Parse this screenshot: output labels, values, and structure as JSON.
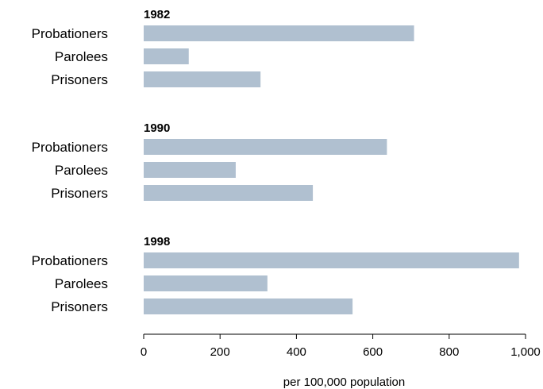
{
  "chart_data": {
    "type": "bar",
    "orientation": "horizontal",
    "xlabel": "per 100,000 population",
    "xlim": [
      0,
      1000
    ],
    "x_ticks": [
      0,
      200,
      400,
      600,
      800,
      1000
    ],
    "x_tick_labels": [
      "0",
      "200",
      "400",
      "600",
      "800",
      "1,000"
    ],
    "grid": false,
    "bar_color": "#b0c0d0",
    "categories": [
      "Probationers",
      "Parolees",
      "Prisoners"
    ],
    "groups": [
      {
        "name": "1982",
        "values": [
          708,
          118,
          306
        ]
      },
      {
        "name": "1990",
        "values": [
          637,
          241,
          443
        ]
      },
      {
        "name": "1998",
        "values": [
          983,
          324,
          547
        ]
      }
    ]
  }
}
